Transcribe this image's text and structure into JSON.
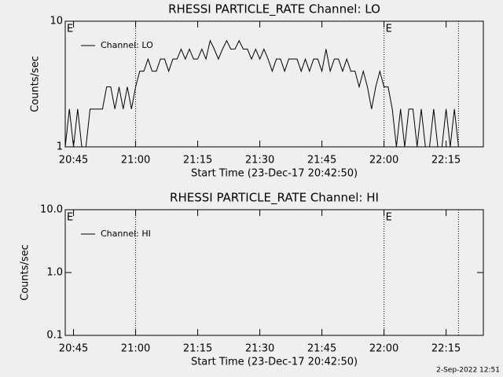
{
  "chart_data": [
    {
      "type": "line",
      "title": "RHESSI PARTICLE_RATE Channel: LO",
      "xlabel": "Start Time (23-Dec-17 20:42:50)",
      "ylabel": "Counts/sec",
      "log_y": true,
      "xlim": [
        "20:43",
        "22:24"
      ],
      "ylim": [
        1,
        10
      ],
      "yticks": [
        1,
        10
      ],
      "xticks": [
        "20:45",
        "21:00",
        "21:15",
        "21:30",
        "21:45",
        "22:00",
        "22:15"
      ],
      "x": [
        "20:43",
        "20:44",
        "20:45",
        "20:46",
        "20:47",
        "20:48",
        "20:49",
        "20:50",
        "20:51",
        "20:52",
        "20:53",
        "20:54",
        "20:55",
        "20:56",
        "20:57",
        "20:58",
        "20:59",
        "21:00",
        "21:01",
        "21:02",
        "21:03",
        "21:04",
        "21:05",
        "21:06",
        "21:07",
        "21:08",
        "21:09",
        "21:10",
        "21:11",
        "21:12",
        "21:13",
        "21:14",
        "21:15",
        "21:16",
        "21:17",
        "21:18",
        "21:19",
        "21:20",
        "21:21",
        "21:22",
        "21:23",
        "21:24",
        "21:25",
        "21:26",
        "21:27",
        "21:28",
        "21:29",
        "21:30",
        "21:31",
        "21:32",
        "21:33",
        "21:34",
        "21:35",
        "21:36",
        "21:37",
        "21:38",
        "21:39",
        "21:40",
        "21:41",
        "21:42",
        "21:43",
        "21:44",
        "21:45",
        "21:46",
        "21:47",
        "21:48",
        "21:49",
        "21:50",
        "21:51",
        "21:52",
        "21:53",
        "21:54",
        "21:55",
        "21:56",
        "21:57",
        "21:58",
        "21:59",
        "22:00",
        "22:01",
        "22:02",
        "22:03",
        "22:04",
        "22:05",
        "22:06",
        "22:07",
        "22:08",
        "22:09",
        "22:10",
        "22:11",
        "22:12",
        "22:13",
        "22:14",
        "22:15",
        "22:16",
        "22:17",
        "22:18"
      ],
      "series": [
        {
          "name": "Channel: LO",
          "color": "#000000",
          "values": [
            1,
            2,
            1,
            2,
            1,
            1,
            2,
            2,
            2,
            2,
            3,
            3,
            2,
            3,
            2,
            3,
            2,
            3,
            4,
            4,
            5,
            4,
            4,
            5,
            5,
            4,
            5,
            5,
            6,
            5,
            6,
            5,
            5,
            6,
            5,
            7,
            6,
            5,
            6,
            7,
            6,
            6,
            7,
            6,
            6,
            5,
            6,
            5,
            6,
            5,
            4,
            5,
            5,
            4,
            5,
            5,
            5,
            4,
            5,
            4,
            5,
            5,
            4,
            6,
            4,
            5,
            5,
            4,
            5,
            4,
            4,
            3,
            4,
            3,
            2,
            3,
            4,
            3,
            3,
            2,
            1,
            2,
            1,
            2,
            2,
            1,
            2,
            1,
            1,
            2,
            1,
            1,
            2,
            1,
            2,
            1
          ]
        }
      ],
      "vlines": [
        "21:00",
        "22:00",
        "22:18"
      ],
      "annotations": [
        {
          "text": "E",
          "x": "20:43"
        },
        {
          "text": "E",
          "x": "22:00"
        }
      ]
    },
    {
      "type": "line",
      "title": "RHESSI PARTICLE_RATE Channel: HI",
      "xlabel": "Start Time (23-Dec-17 20:42:50)",
      "ylabel": "Counts/sec",
      "log_y": true,
      "xlim": [
        "20:43",
        "22:24"
      ],
      "ylim": [
        0.1,
        10
      ],
      "yticks": [
        0.1,
        {
          "value": 1,
          "label": "1.0"
        },
        {
          "value": 10,
          "label": "10.0"
        }
      ],
      "xticks": [
        "20:45",
        "21:00",
        "21:15",
        "21:30",
        "21:45",
        "22:00",
        "22:15"
      ],
      "x": [],
      "series": [
        {
          "name": "Channel: HI",
          "color": "#000000",
          "values": []
        }
      ],
      "vlines": [
        "21:00",
        "22:00",
        "22:18"
      ],
      "annotations": [
        {
          "text": "E",
          "x": "20:43"
        },
        {
          "text": "E",
          "x": "22:00"
        }
      ]
    }
  ],
  "footer": "2-Sep-2022 12:51"
}
